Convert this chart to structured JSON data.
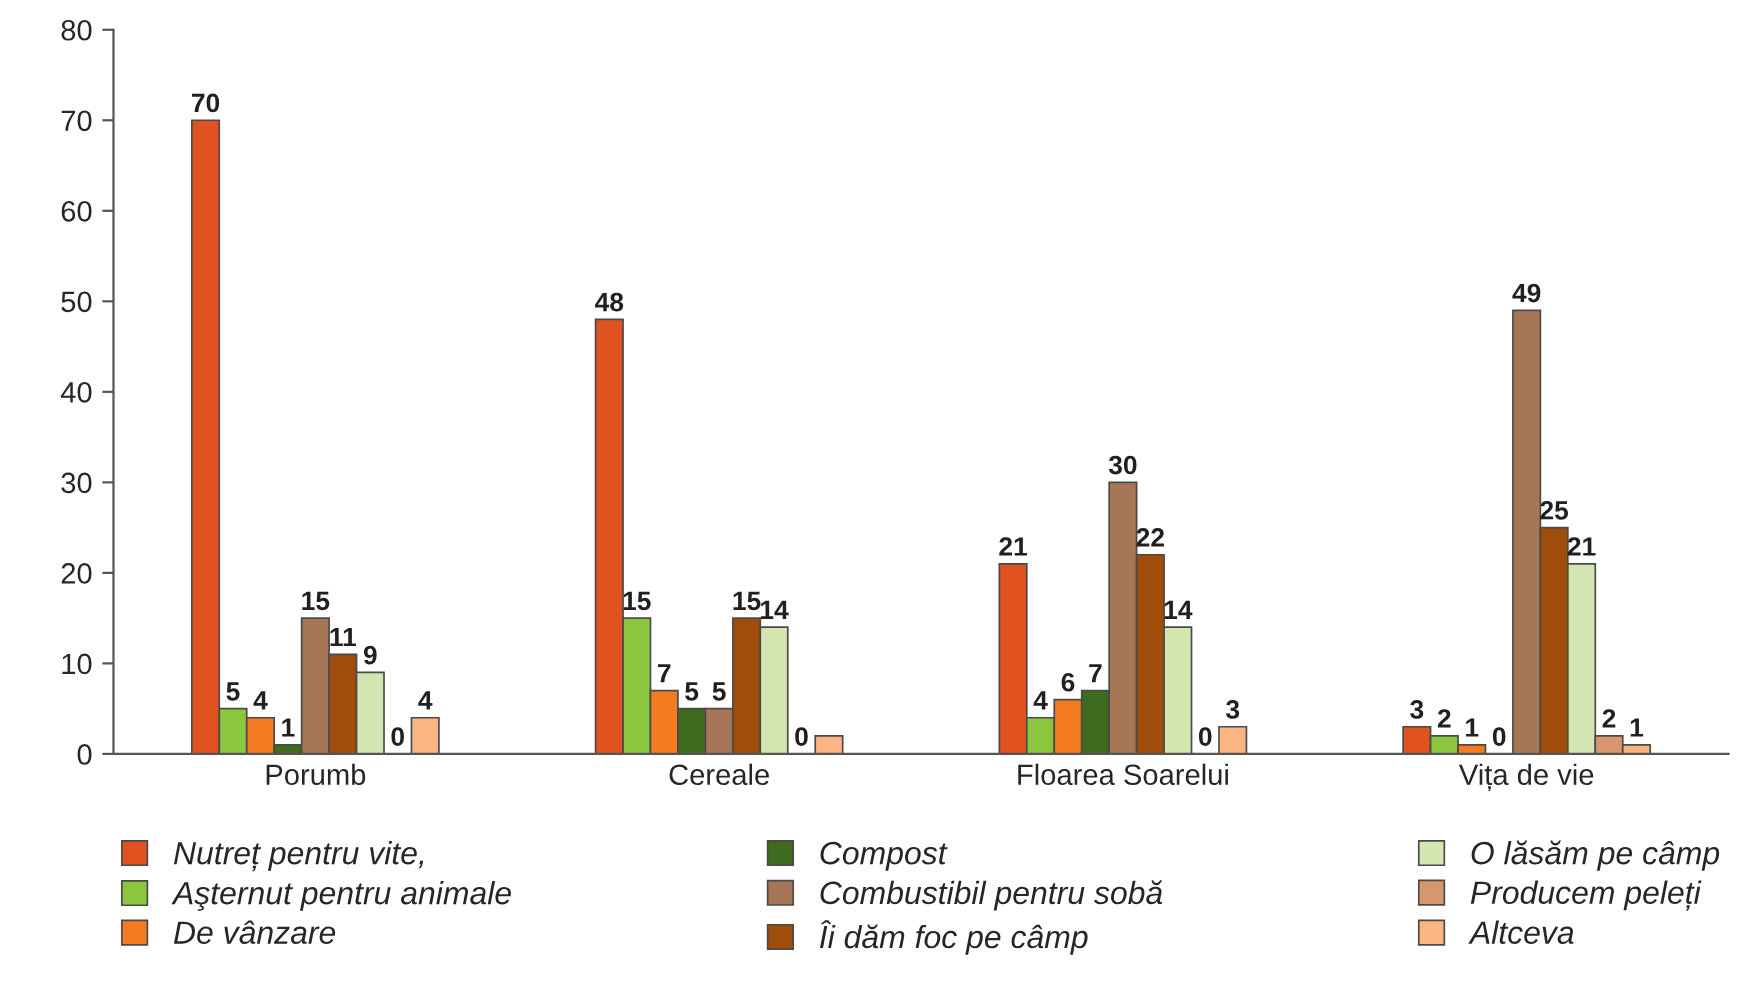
{
  "chart_data": {
    "type": "bar",
    "categories": [
      "Porumb",
      "Cereale",
      "Floarea Soarelui",
      "Vița de vie"
    ],
    "series": [
      {
        "name": "Nutreț pentru vite,",
        "color": "#e0521f",
        "values": [
          70,
          48,
          21,
          3
        ],
        "value_labels": [
          "70",
          "48",
          "21",
          "3"
        ]
      },
      {
        "name": "Aşternut pentru animale",
        "color": "#8cc63f",
        "values": [
          5,
          15,
          4,
          2
        ],
        "value_labels": [
          "5",
          "15",
          "4",
          "2"
        ]
      },
      {
        "name": "De vânzare",
        "color": "#f47b20",
        "values": [
          4,
          7,
          6,
          1
        ],
        "value_labels": [
          "4",
          "7",
          "6",
          "1"
        ]
      },
      {
        "name": "Compost",
        "color": "#3f6b1e",
        "values": [
          1,
          5,
          7,
          0
        ],
        "value_labels": [
          "1",
          "5",
          "7",
          "0"
        ]
      },
      {
        "name": "Combustibil pentru sobă",
        "color": "#a67656",
        "values": [
          15,
          5,
          30,
          49
        ],
        "value_labels": [
          "15",
          "5",
          "30",
          "49"
        ]
      },
      {
        "name": "Îi dăm foc pe câmp",
        "color": "#a04c0a",
        "values": [
          11,
          15,
          22,
          25
        ],
        "value_labels": [
          "11",
          "15",
          "22",
          "25"
        ]
      },
      {
        "name": "O lăsăm pe câmp",
        "color": "#d3e6b2",
        "values": [
          9,
          14,
          14,
          21
        ],
        "value_labels": [
          "9",
          "14",
          "14",
          "21"
        ]
      },
      {
        "name": "Producem peleți",
        "color": "#d6976f",
        "values": [
          0,
          0,
          0,
          2
        ],
        "value_labels": [
          "0",
          "0",
          "0",
          "2"
        ]
      },
      {
        "name": "Altceva",
        "color": "#fbb583",
        "values": [
          4,
          2,
          3,
          1
        ],
        "value_labels": [
          "4",
          null,
          "3",
          "1"
        ]
      }
    ],
    "ylim": [
      0,
      80
    ],
    "yticks": [
      0,
      10,
      20,
      30,
      40,
      50,
      60,
      70,
      80
    ],
    "grid": false,
    "legend": "bottom"
  }
}
